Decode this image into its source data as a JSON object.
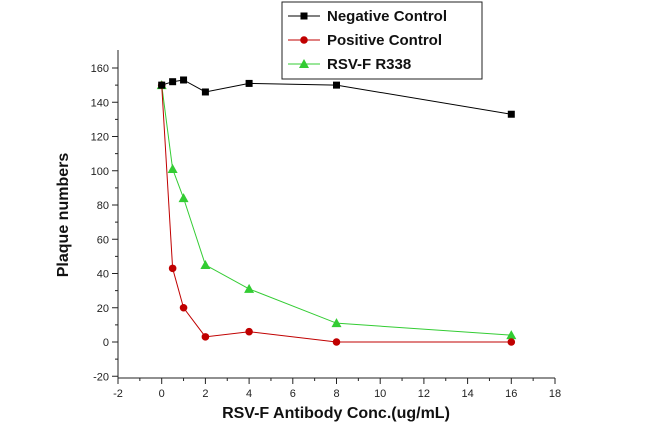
{
  "chart_data": {
    "type": "line",
    "title": "",
    "xlabel": "RSV-F Antibody Conc.(ug/mL)",
    "ylabel": "Plaque numbers",
    "xlim": [
      -2,
      18
    ],
    "ylim": [
      -20,
      170
    ],
    "x_ticks": [
      -2,
      0,
      2,
      4,
      6,
      8,
      10,
      12,
      14,
      16,
      18
    ],
    "y_ticks": [
      -20,
      0,
      20,
      40,
      60,
      80,
      100,
      120,
      140,
      160
    ],
    "grid": false,
    "legend_position": "top-center",
    "series": [
      {
        "name": "Negative Control",
        "color": "#000000",
        "marker": "square",
        "x": [
          0,
          0.5,
          1,
          2,
          4,
          8,
          16
        ],
        "y": [
          150,
          152,
          153,
          146,
          151,
          150,
          133
        ]
      },
      {
        "name": "Positive Control",
        "color": "#c00000",
        "marker": "circle",
        "x": [
          0,
          0.5,
          1,
          2,
          4,
          8,
          16
        ],
        "y": [
          150,
          43,
          20,
          3,
          6,
          0,
          0
        ]
      },
      {
        "name": "RSV-F R338",
        "color": "#33cc33",
        "marker": "triangle",
        "x": [
          0,
          0.5,
          1,
          2,
          4,
          8,
          16
        ],
        "y": [
          150,
          101,
          84,
          45,
          31,
          11,
          4
        ]
      }
    ]
  }
}
